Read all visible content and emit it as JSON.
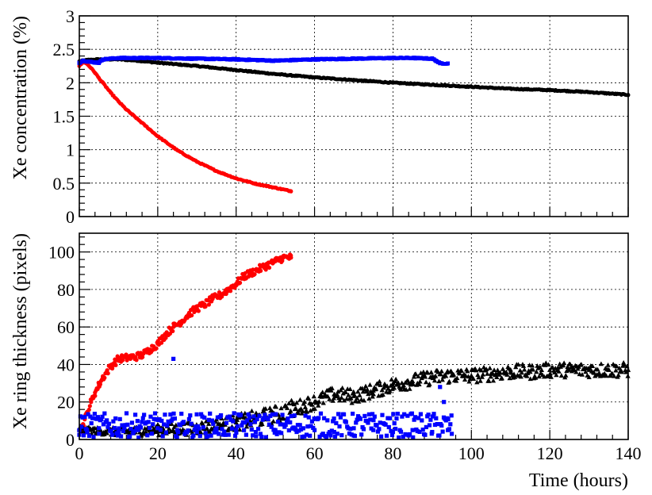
{
  "chart_data": [
    {
      "type": "scatter",
      "title": "",
      "xlabel": "",
      "ylabel": "Xe concentration (%)",
      "xlim": [
        0,
        140
      ],
      "ylim": [
        0,
        3
      ],
      "x_ticks": [
        0,
        20,
        40,
        60,
        80,
        100,
        120,
        140
      ],
      "y_ticks": [
        0,
        0.5,
        1,
        1.5,
        2,
        2.5,
        3
      ],
      "y_tick_labels": [
        "0",
        "0.5",
        "1",
        "1.5",
        "2",
        "2.5",
        "3"
      ],
      "show_x_tick_labels": false,
      "grid": true,
      "series": [
        {
          "color": "#000000",
          "marker": "circle",
          "x": [
            0,
            2,
            5,
            10,
            15,
            20,
            30,
            40,
            50,
            60,
            70,
            80,
            90,
            100,
            110,
            120,
            130,
            140
          ],
          "y": [
            2.32,
            2.34,
            2.35,
            2.35,
            2.33,
            2.3,
            2.25,
            2.19,
            2.13,
            2.08,
            2.04,
            2.0,
            1.97,
            1.94,
            1.91,
            1.89,
            1.86,
            1.82
          ]
        },
        {
          "color": "#ff0000",
          "marker": "circle",
          "x": [
            0,
            1,
            2,
            3,
            4,
            5,
            6,
            8,
            10,
            12,
            15,
            18,
            20,
            25,
            30,
            35,
            40,
            45,
            50,
            54
          ],
          "y": [
            2.25,
            2.31,
            2.28,
            2.22,
            2.15,
            2.07,
            2.0,
            1.85,
            1.72,
            1.6,
            1.45,
            1.3,
            1.2,
            0.99,
            0.82,
            0.68,
            0.57,
            0.49,
            0.43,
            0.38
          ]
        },
        {
          "color": "#0000ff",
          "marker": "square",
          "x": [
            0,
            1,
            3,
            5,
            6,
            10,
            15,
            20,
            30,
            40,
            50,
            60,
            70,
            80,
            85,
            90,
            91,
            92,
            94
          ],
          "y": [
            2.3,
            2.33,
            2.31,
            2.3,
            2.35,
            2.37,
            2.37,
            2.37,
            2.36,
            2.35,
            2.33,
            2.35,
            2.36,
            2.37,
            2.37,
            2.36,
            2.33,
            2.29,
            2.29
          ]
        }
      ]
    },
    {
      "type": "scatter",
      "title": "",
      "xlabel": "Time (hours)",
      "ylabel": "Xe ring thickness (pixels)",
      "xlim": [
        0,
        140
      ],
      "ylim": [
        0,
        110
      ],
      "x_ticks": [
        0,
        20,
        40,
        60,
        80,
        100,
        120,
        140
      ],
      "x_tick_labels": [
        "0",
        "20",
        "40",
        "60",
        "80",
        "100",
        "120",
        "140"
      ],
      "y_ticks": [
        0,
        20,
        40,
        60,
        80,
        100
      ],
      "y_tick_labels": [
        "0",
        "20",
        "40",
        "60",
        "80",
        "100"
      ],
      "grid": true,
      "series": [
        {
          "color": "#ff0000",
          "marker": "circle",
          "x": [
            0.5,
            1,
            2,
            3,
            4,
            5,
            6,
            7,
            8,
            9,
            10,
            12,
            14,
            16,
            18,
            20,
            22,
            24,
            26,
            28,
            30,
            32,
            34,
            36,
            38,
            40,
            42,
            44,
            46,
            48,
            50,
            52,
            54
          ],
          "y": [
            4,
            8,
            14,
            20,
            25,
            29,
            33,
            36,
            39,
            41,
            43,
            43.5,
            44,
            45,
            48,
            51,
            56,
            60,
            63,
            67,
            70,
            72,
            75,
            77,
            80,
            83,
            87,
            89,
            91,
            93,
            95,
            97,
            97
          ]
        },
        {
          "color": "#000000",
          "marker": "triangle",
          "x": [
            0,
            10,
            20,
            30,
            40,
            50,
            60,
            65,
            70,
            75,
            80,
            85,
            90,
            95,
            100,
            105,
            110,
            115,
            120,
            125,
            130,
            135,
            140
          ],
          "y": [
            5,
            4,
            5,
            6,
            9,
            13,
            20,
            24,
            23,
            26,
            29,
            31,
            33,
            34,
            34,
            35,
            36,
            36,
            37,
            37,
            37,
            37,
            37
          ]
        },
        {
          "color": "#0000ff",
          "marker": "square",
          "x": [
            0,
            2,
            5,
            10,
            15,
            20,
            24,
            25,
            30,
            35,
            40,
            45,
            50,
            55,
            60,
            65,
            70,
            75,
            80,
            85,
            90,
            92,
            93,
            94,
            95
          ],
          "y": [
            5,
            4,
            6,
            4,
            5,
            6,
            43,
            5,
            4,
            6,
            5,
            4,
            5,
            6,
            5,
            4,
            6,
            5,
            4,
            5,
            4,
            28,
            20,
            5,
            3
          ]
        }
      ]
    }
  ]
}
